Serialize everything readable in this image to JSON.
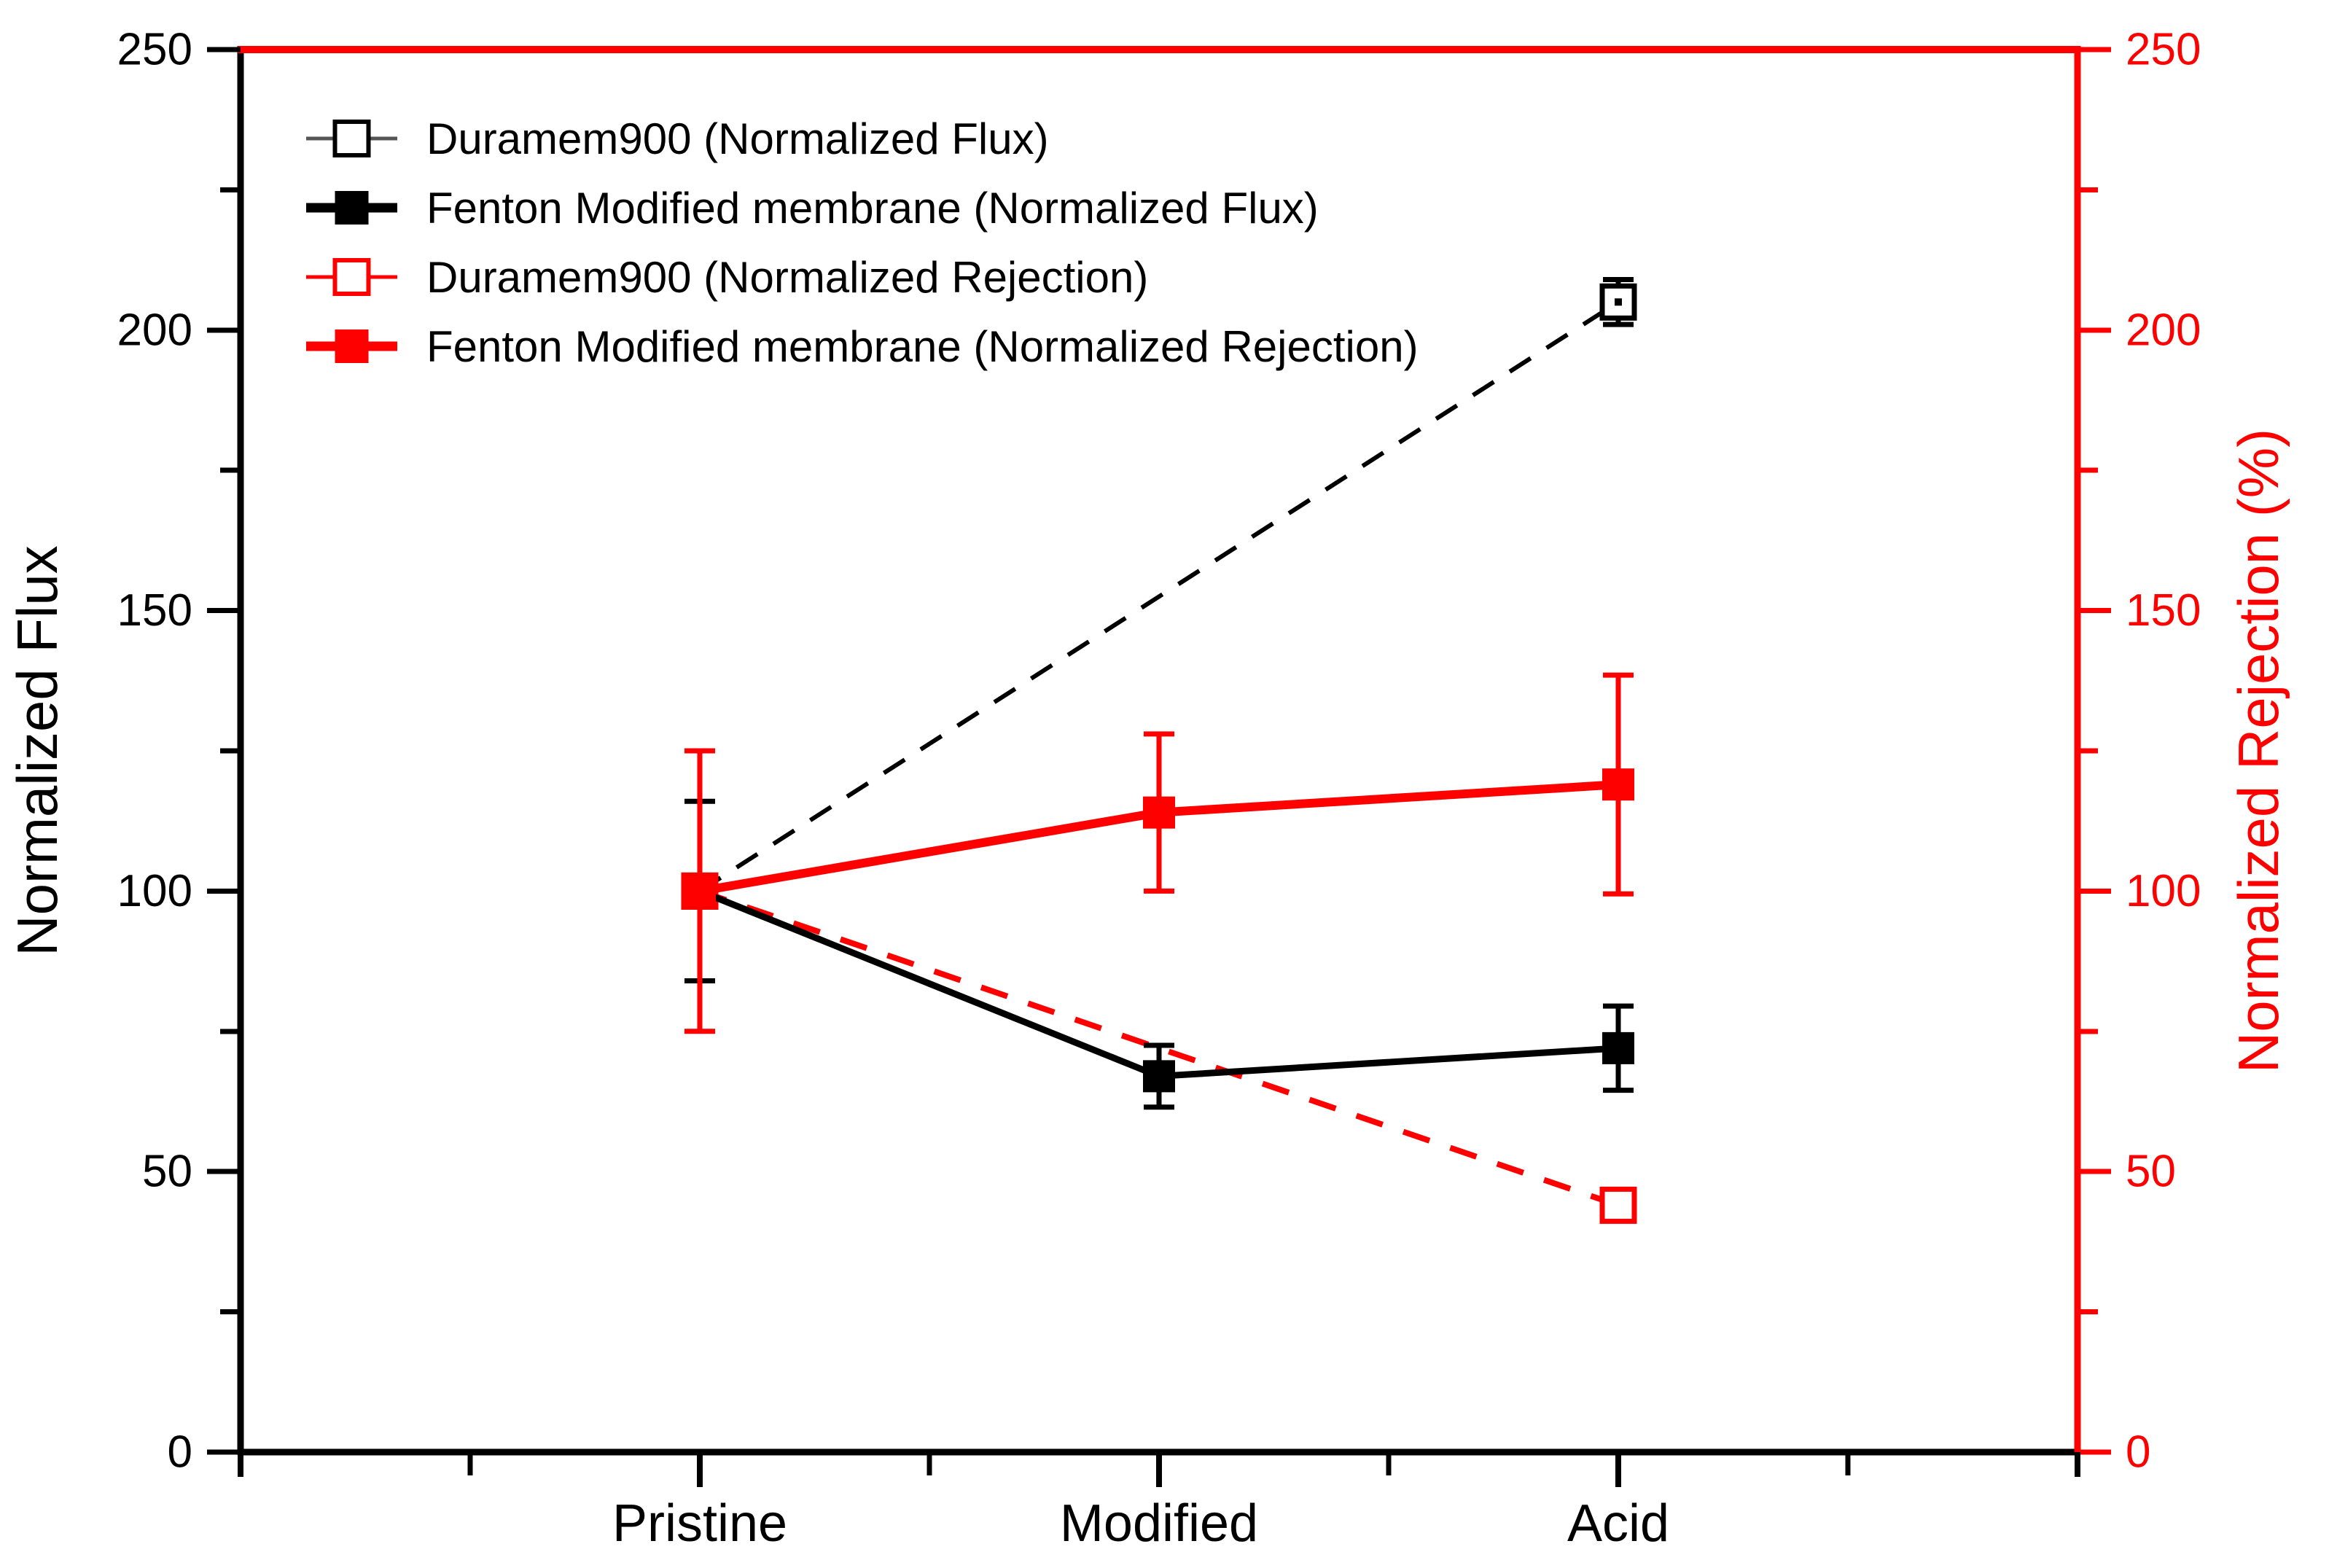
{
  "chart_data": {
    "type": "line",
    "title": "",
    "categories": [
      "Pristine",
      "Modified",
      "Acid"
    ],
    "axes": {
      "left": {
        "title": "Normalized Flux",
        "color": "#000000",
        "min": 0,
        "max": 250,
        "major_step": 50,
        "minor_step": 25,
        "tick_labels": [
          "0",
          "50",
          "100",
          "150",
          "200",
          "250"
        ]
      },
      "right": {
        "title": "Normalized Rejection (%)",
        "color": "#ff0000",
        "min": 0,
        "max": 250,
        "major_step": 50,
        "minor_step": 25,
        "tick_labels": [
          "0",
          "50",
          "100",
          "150",
          "200",
          "250"
        ]
      },
      "bottom": {
        "labels": [
          "Pristine",
          "Modified",
          "Acid"
        ]
      }
    },
    "grid": false,
    "series": [
      {
        "id": "duramem-flux",
        "name": "Duramem900 (Normalized Flux)",
        "axis": "left",
        "color": "#000000",
        "line": "dashed",
        "marker": "open-square",
        "center_dot": true,
        "values": [
          100,
          null,
          205
        ],
        "errors": [
          null,
          null,
          4
        ]
      },
      {
        "id": "duramem-rejection",
        "name": "Duramem900 (Normalized Rejection)",
        "axis": "right",
        "color": "#ff0000",
        "line": "dashed",
        "marker": "open-square",
        "center_dot": false,
        "values": [
          100,
          null,
          44
        ],
        "errors": [
          null,
          null,
          null
        ]
      },
      {
        "id": "fenton-flux",
        "name": "Fenton Modified membrane (Normalized Flux)",
        "axis": "left",
        "color": "#000000",
        "line": "solid",
        "marker": "filled-square",
        "center_dot": false,
        "values": [
          100,
          67,
          72
        ],
        "errors": [
          16,
          5.5,
          7.5
        ]
      },
      {
        "id": "fenton-rejection",
        "name": "Fenton Modified membrane (Normalized Rejection)",
        "axis": "right",
        "color": "#ff0000",
        "line": "solid",
        "marker": "filled-square",
        "center_dot": false,
        "values": [
          100,
          114,
          119
        ],
        "errors": [
          25,
          14,
          19.5
        ]
      }
    ],
    "legend": {
      "position": "top-left-inside",
      "entries": [
        {
          "series": "duramem-flux",
          "label": "Duramem900 (Normalized Flux)",
          "line_style": "thin",
          "line_color": "#555555",
          "marker": "open-square",
          "marker_color": "#000000"
        },
        {
          "series": "fenton-flux",
          "label": "Fenton Modified membrane (Normalized Flux)",
          "line_style": "thick",
          "line_color": "#000000",
          "marker": "filled-square",
          "marker_color": "#000000"
        },
        {
          "series": "duramem-rejection",
          "label": "Duramem900 (Normalized Rejection)",
          "line_style": "thin",
          "line_color": "#ff0000",
          "marker": "open-square",
          "marker_color": "#ff0000"
        },
        {
          "series": "fenton-rejection",
          "label": "Fenton Modified membrane (Normalized Rejection)",
          "line_style": "thick",
          "line_color": "#ff0000",
          "marker": "filled-square",
          "marker_color": "#ff0000"
        }
      ]
    }
  }
}
